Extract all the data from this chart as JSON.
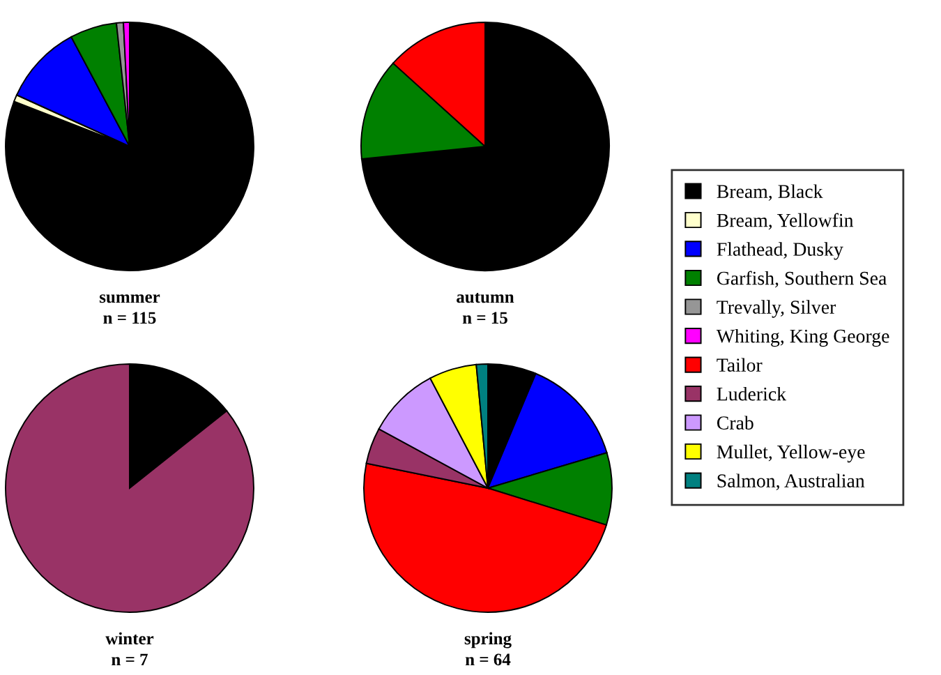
{
  "chart_data": [
    {
      "type": "pie",
      "title": "summer",
      "subtitle": "n = 115",
      "legend": "right",
      "categories": [
        "Bream, Black",
        "Bream, Yellowfin",
        "Flathead, Dusky",
        "Garfish, Southern Sea",
        "Trevally, Silver",
        "Whiting, King George",
        "Tailor",
        "Luderick",
        "Crab",
        "Mullet, Yellow-eye",
        "Salmon, Australian"
      ],
      "values": [
        80.9,
        0.9,
        10.4,
        6.1,
        0.9,
        0.8,
        0,
        0,
        0,
        0,
        0
      ],
      "colors": [
        "#000000",
        "#ffffcc",
        "#0000ff",
        "#008000",
        "#969696",
        "#ff00ff",
        "#ff0000",
        "#993366",
        "#cc99ff",
        "#ffff00",
        "#008080"
      ]
    },
    {
      "type": "pie",
      "title": "autumn",
      "subtitle": "n = 15",
      "categories": [
        null,
        null,
        null
      ],
      "values": [
        73.4,
        13.3,
        13.3
      ],
      "colors": [
        "#000000",
        "#008000",
        "#ff0000"
      ]
    },
    {
      "type": "pie",
      "title": "winter",
      "subtitle": "n = 7",
      "categories": [
        null,
        null
      ],
      "values": [
        14.3,
        85.7
      ],
      "colors": [
        "#000000",
        "#993366"
      ]
    },
    {
      "type": "pie",
      "title": "spring",
      "subtitle": "n = 64",
      "categories": [
        null,
        null,
        null,
        null,
        null,
        null,
        null,
        null
      ],
      "values": [
        6.3,
        14.1,
        9.4,
        48.4,
        4.7,
        9.4,
        6.2,
        1.5
      ],
      "colors": [
        "#000000",
        "#0000ff",
        "#008000",
        "#ff0000",
        "#993366",
        "#cc99ff",
        "#ffff00",
        "#008080"
      ]
    }
  ]
}
